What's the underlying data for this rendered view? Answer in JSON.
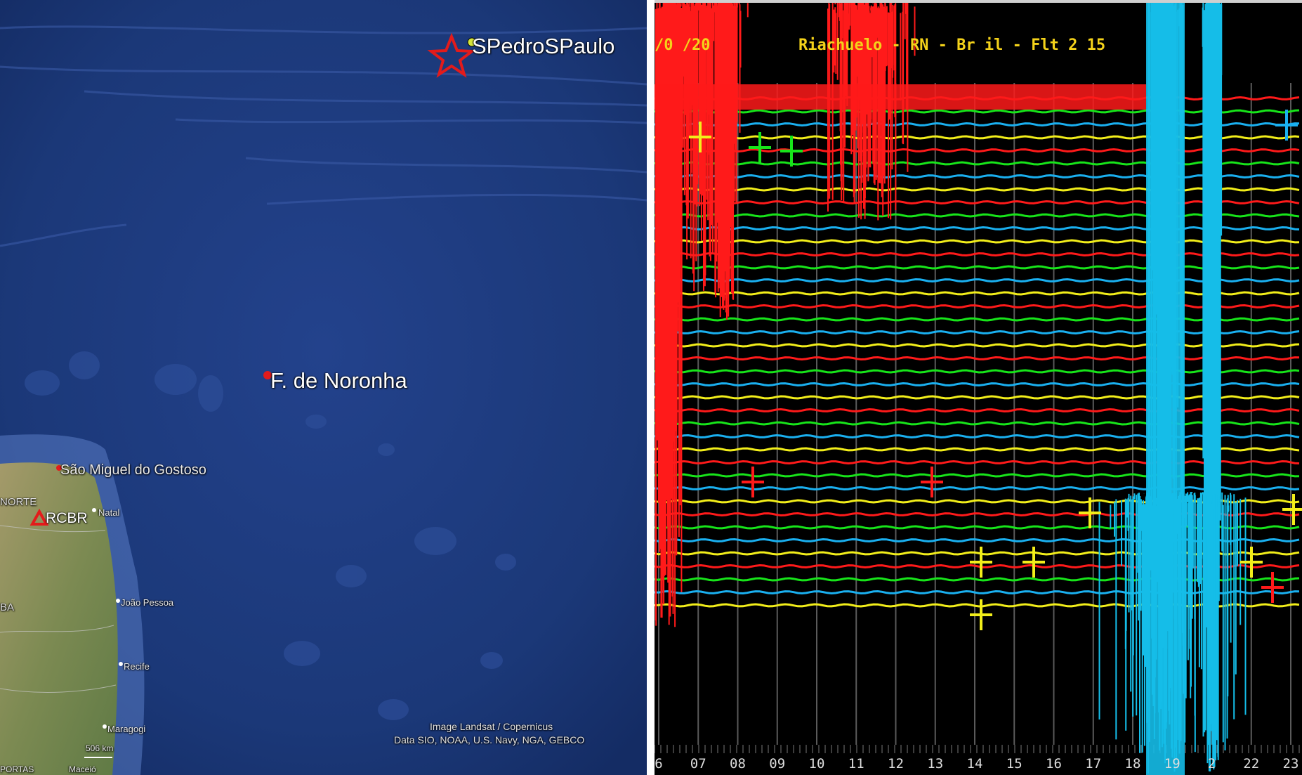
{
  "map": {
    "labels": {
      "spsp": "SPedroSPaulo",
      "noronha": "F. de Noronha",
      "sao_miguel": "São Miguel do Gostoso",
      "norte": "NORTE",
      "rcbr": "RCBR",
      "natal": "Natal",
      "joao_pessoa": "João Pessoa",
      "recife": "Recife",
      "maragogi": "Maragogi",
      "ba": "BA",
      "scale": "506 km",
      "bottom_left": "PORTAS",
      "bottom_left2": "Maceió"
    },
    "credits": {
      "line1": "Image Landsat / Copernicus",
      "line2": "Data SIO, NOAA, U.S. Navy, NGA, GEBCO"
    },
    "colors": {
      "ocean": "#1c3a80",
      "land": "#8a9360",
      "marker": "#e31b1b",
      "star": "#e31b1b"
    }
  },
  "seismogram": {
    "date": "/0 /20",
    "header": "Riachuelo - RN - Br  il - Flt 2 15",
    "hours": [
      "6",
      "07",
      "08",
      "09",
      "10",
      "11",
      "12",
      "13",
      "14",
      "15",
      "16",
      "17",
      "18",
      "19",
      "2",
      "22",
      "23"
    ],
    "trace_colors": [
      "#ff1a1a",
      "#17e51a",
      "#1ab0f0",
      "#f2ee1a"
    ],
    "colors": {
      "background": "#000000",
      "event_primary": "#ff1a1a",
      "event_large": "#15bde8",
      "header": "#f4d21a"
    }
  }
}
